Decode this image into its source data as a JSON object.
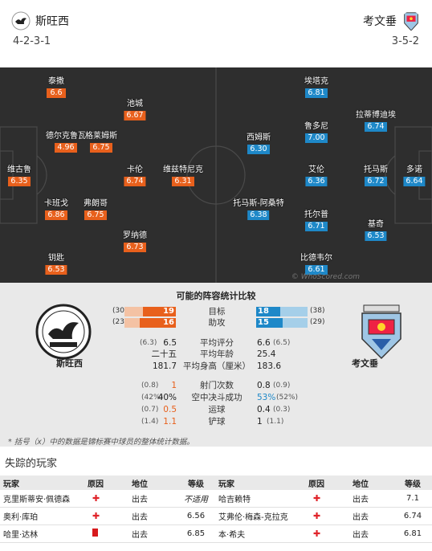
{
  "home": {
    "name": "斯旺西",
    "formation": "4-2-3-1",
    "color": "#e8601c",
    "players": [
      {
        "name": "泰撒",
        "rating": "6.6"
      },
      {
        "name": "池城",
        "rating": "6.67"
      },
      {
        "name": "德尔克鲁瓦",
        "rating": "4.96"
      },
      {
        "name": "格莱姆斯",
        "rating": "6.75"
      },
      {
        "name": "维古鲁",
        "rating": "6.35"
      },
      {
        "name": "卡伦",
        "rating": "6.74"
      },
      {
        "name": "维兹特尼克",
        "rating": "6.31"
      },
      {
        "name": "卡班戈",
        "rating": "6.86"
      },
      {
        "name": "弗朗哥",
        "rating": "6.75"
      },
      {
        "name": "罗纳德",
        "rating": "6.73"
      },
      {
        "name": "钥匙",
        "rating": "6.53"
      }
    ]
  },
  "away": {
    "name": "考文垂",
    "formation": "3-5-2",
    "color": "#1e88c8",
    "players": [
      {
        "name": "埃塔克",
        "rating": "6.81"
      },
      {
        "name": "拉蒂博迪埃",
        "rating": "6.74"
      },
      {
        "name": "西姆斯",
        "rating": "6.30"
      },
      {
        "name": "鲁多尼",
        "rating": "7.00"
      },
      {
        "name": "多诺",
        "rating": "6.64"
      },
      {
        "name": "艾伦",
        "rating": "6.36"
      },
      {
        "name": "托马斯",
        "rating": "6.72"
      },
      {
        "name": "托马斯-阿桑特",
        "rating": "6.38"
      },
      {
        "name": "托尔普",
        "rating": "6.71"
      },
      {
        "name": "基奇",
        "rating": "6.53"
      },
      {
        "name": "比德韦尔",
        "rating": "6.61"
      }
    ]
  },
  "watermark": "© WhoScored.com",
  "stats": {
    "title": "可能的阵容统计比较",
    "bars": [
      {
        "label": "目标",
        "home_prev": "(30)",
        "home": "19",
        "home_frac": 0.633,
        "away": "18",
        "away_frac": 0.474,
        "away_prev": "(38)"
      },
      {
        "label": "助攻",
        "home_prev": "(23)",
        "home": "16",
        "home_frac": 0.696,
        "away": "15",
        "away_frac": 0.517,
        "away_prev": "(29)"
      }
    ],
    "group1": [
      {
        "label": "平均评分",
        "home_prev": "(6.3)",
        "home": "6.5",
        "away": "6.6",
        "away_prev": "(6.5)"
      },
      {
        "label": "平均年龄",
        "home_prev": "",
        "home": "二十五",
        "away": "25.4",
        "away_prev": ""
      },
      {
        "label": "平均身高（厘米）",
        "home_prev": "",
        "home": "181.7",
        "away": "183.6",
        "away_prev": ""
      }
    ],
    "group2": [
      {
        "label": "射门次数",
        "home_prev": "(0.8)",
        "home": "1",
        "away": "0.8",
        "away_prev": "(0.9)"
      },
      {
        "label": "空中决斗成功",
        "home_prev": "(42%)",
        "home": "40%",
        "away": "53%",
        "away_prev": "(52%)"
      },
      {
        "label": "运球",
        "home_prev": "(0.7)",
        "home": "0.5",
        "away": "0.4",
        "away_prev": "(0.3)"
      },
      {
        "label": "铲球",
        "home_prev": "(1.4)",
        "home": "1.1",
        "away": "1",
        "away_prev": "(1.1)"
      }
    ],
    "note": "* 括号（x）中的数据是锦标赛中球员的整体统计数据。"
  },
  "missing": {
    "title": "失踪的玩家",
    "headers": [
      "玩家",
      "原因",
      "地位",
      "等级",
      "玩家",
      "原因",
      "地位",
      "等级"
    ],
    "rows": [
      {
        "h_player": "克里斯蒂安·佩德森",
        "h_reason": "injury",
        "h_status": "出去",
        "h_rating": "不适用",
        "a_player": "哈吉赖特",
        "a_reason": "injury",
        "a_status": "出去",
        "a_rating": "7.1"
      },
      {
        "h_player": "奥利·库珀",
        "h_reason": "injury",
        "h_status": "出去",
        "h_rating": "6.56",
        "a_player": "艾弗伦·梅森-克拉克",
        "a_reason": "injury",
        "a_status": "出去",
        "a_rating": "6.74"
      },
      {
        "h_player": "哈里·达林",
        "h_reason": "red-card",
        "h_status": "出去",
        "h_rating": "6.85",
        "a_player": "本·希夫",
        "a_reason": "injury",
        "a_status": "出去",
        "a_rating": "6.81"
      }
    ]
  }
}
